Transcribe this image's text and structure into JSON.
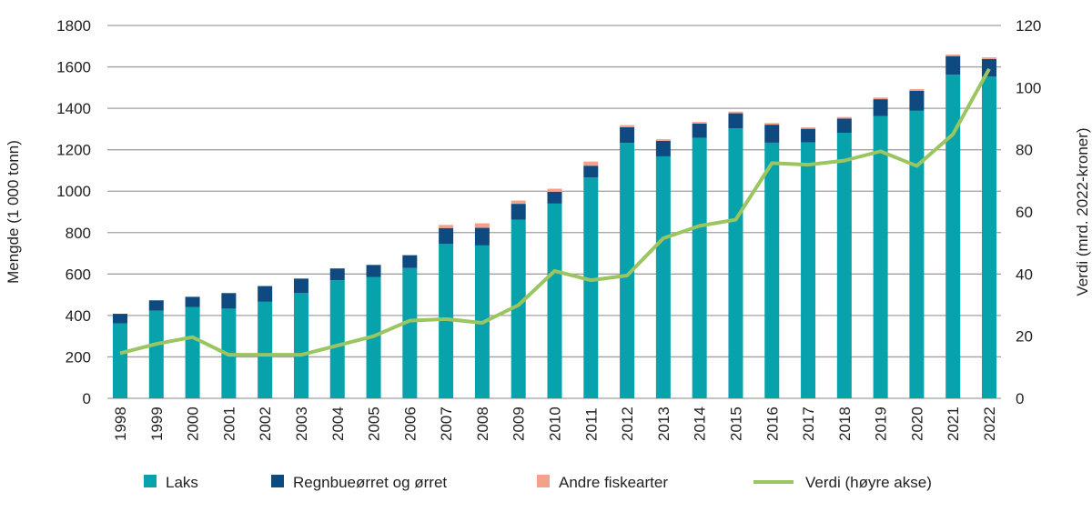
{
  "chart_data": {
    "type": "bar",
    "stacked": true,
    "categories": [
      "1998",
      "1999",
      "2000",
      "2001",
      "2002",
      "2003",
      "2004",
      "2005",
      "2006",
      "2007",
      "2008",
      "2009",
      "2010",
      "2011",
      "2012",
      "2013",
      "2014",
      "2015",
      "2016",
      "2017",
      "2018",
      "2019",
      "2020",
      "2021",
      "2022"
    ],
    "series": [
      {
        "name": "Laks",
        "type": "bar",
        "axis": "left",
        "color": "#07a2ac",
        "values": [
          362,
          423,
          440,
          433,
          466,
          508,
          570,
          586,
          629,
          745,
          738,
          862,
          940,
          1066,
          1233,
          1168,
          1258,
          1303,
          1234,
          1236,
          1282,
          1362,
          1388,
          1562,
          1553
        ]
      },
      {
        "name": "Regnbueørret og ørret",
        "type": "bar",
        "axis": "left",
        "color": "#0e4a80",
        "values": [
          46,
          50,
          50,
          75,
          76,
          70,
          57,
          58,
          62,
          77,
          85,
          77,
          57,
          57,
          76,
          75,
          68,
          73,
          87,
          65,
          68,
          82,
          97,
          90,
          85
        ]
      },
      {
        "name": "Andre fiskearter",
        "type": "bar",
        "axis": "left",
        "color": "#f4a18b",
        "values": [
          0,
          0,
          0,
          0,
          0,
          0,
          0,
          0,
          0,
          15,
          22,
          16,
          15,
          20,
          10,
          8,
          8,
          8,
          8,
          7,
          8,
          8,
          8,
          8,
          8
        ]
      },
      {
        "name": "Verdi (høyre akse)",
        "type": "line",
        "axis": "right",
        "color": "#9bc561",
        "values": [
          14.5,
          17.5,
          19.7,
          14,
          14,
          14,
          17,
          20,
          25,
          25.5,
          24.3,
          30,
          41,
          38,
          39.5,
          51.5,
          55.5,
          57.5,
          75.7,
          75.2,
          76.5,
          79.5,
          74.8,
          85,
          106
        ]
      }
    ],
    "ylabel": "Mengde (1 000 tonn)",
    "y2label": "Verdi (mrd. 2022-kroner)",
    "ylim": [
      0,
      1800
    ],
    "y2lim": [
      0,
      120
    ],
    "yticks": [
      "0",
      "200",
      "400",
      "600",
      "800",
      "1000",
      "1200",
      "1400",
      "1600",
      "1800"
    ],
    "y2ticks": [
      "0",
      "20",
      "40",
      "60",
      "80",
      "100",
      "120"
    ],
    "grid": true,
    "legend_position": "bottom"
  }
}
